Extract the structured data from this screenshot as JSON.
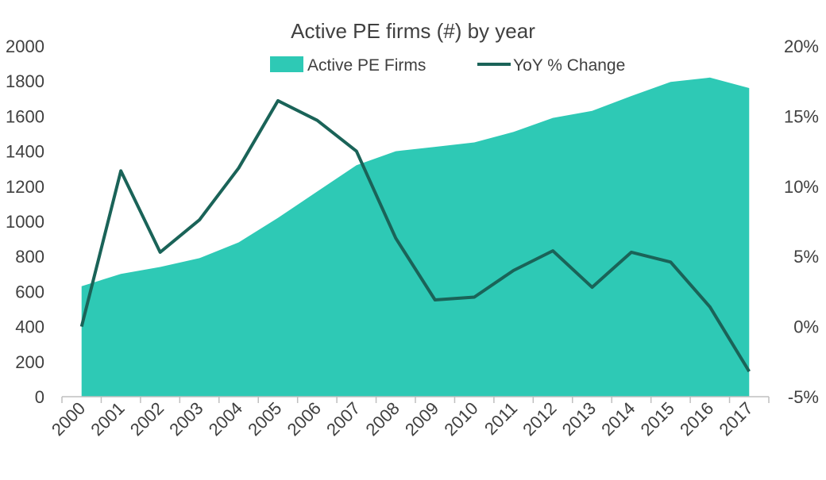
{
  "chart_data": {
    "type": "area",
    "title": "Active PE firms (#) by year",
    "categories": [
      "2000",
      "2001",
      "2002",
      "2003",
      "2004",
      "2005",
      "2006",
      "2007",
      "2008",
      "2009",
      "2010",
      "2011",
      "2012",
      "2013",
      "2014",
      "2015",
      "2016",
      "2017"
    ],
    "series": [
      {
        "name": "Active PE Firms",
        "type": "area",
        "axis": "left",
        "color": "#2EC9B5",
        "values": [
          630,
          700,
          740,
          790,
          880,
          1020,
          1170,
          1320,
          1400,
          1425,
          1450,
          1510,
          1590,
          1630,
          1715,
          1795,
          1820,
          1760
        ]
      },
      {
        "name": "YoY % Change",
        "type": "line",
        "axis": "right",
        "color": "#1A6358",
        "values": [
          0.0,
          11.1,
          5.3,
          7.6,
          11.3,
          16.1,
          14.7,
          12.5,
          6.3,
          1.9,
          2.1,
          4.0,
          5.4,
          2.8,
          5.3,
          4.6,
          1.4,
          -3.2
        ]
      }
    ],
    "y_left": {
      "min": 0,
      "max": 2000,
      "ticks": [
        "0",
        "200",
        "400",
        "600",
        "800",
        "1000",
        "1200",
        "1400",
        "1600",
        "1800",
        "2000"
      ]
    },
    "y_right": {
      "min": -5,
      "max": 20,
      "ticks": [
        "-5%",
        "0%",
        "5%",
        "10%",
        "15%",
        "20%"
      ]
    },
    "grid": false,
    "legend": "top"
  }
}
